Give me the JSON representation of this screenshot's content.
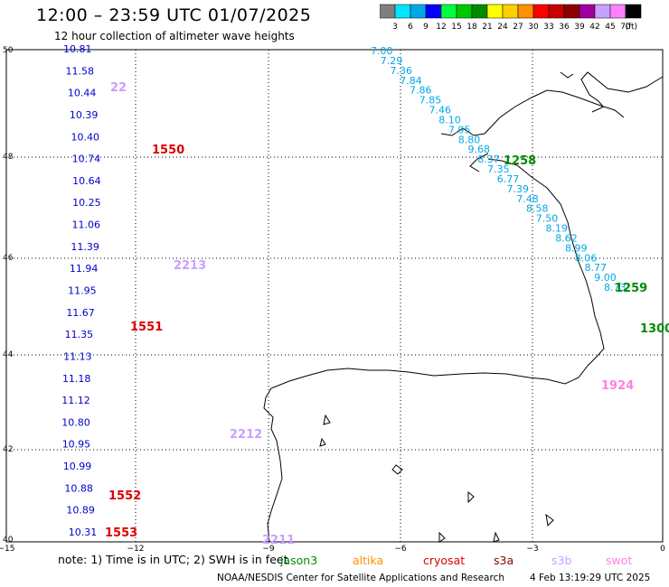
{
  "header": {
    "title": "12:00 – 23:59 UTC 01/07/2025",
    "subtitle": "12 hour collection of altimeter wave heights"
  },
  "legend": {
    "units": "(ft)",
    "bins": [
      {
        "label": "3",
        "color": "#7f7f7f"
      },
      {
        "label": "6",
        "color": "#00e5ff"
      },
      {
        "label": "9",
        "color": "#00a8e8"
      },
      {
        "label": "12",
        "color": "#0000ff"
      },
      {
        "label": "15",
        "color": "#00ff40"
      },
      {
        "label": "18",
        "color": "#00c800"
      },
      {
        "label": "21",
        "color": "#008c00"
      },
      {
        "label": "24",
        "color": "#ffff00"
      },
      {
        "label": "27",
        "color": "#ffd000"
      },
      {
        "label": "30",
        "color": "#ff9000"
      },
      {
        "label": "33",
        "color": "#ff0000"
      },
      {
        "label": "36",
        "color": "#c80000"
      },
      {
        "label": "39",
        "color": "#8c0000"
      },
      {
        "label": "42",
        "color": "#a000a0"
      },
      {
        "label": "45",
        "color": "#c8a0ff"
      },
      {
        "label": "70",
        "color": "#ff80ff"
      },
      {
        "label": "",
        "color": "#000000"
      }
    ]
  },
  "map": {
    "lat_labels": [
      "50",
      "48",
      "46",
      "44",
      "42",
      "40"
    ],
    "lon_labels": [
      "−15",
      "−12",
      "−9",
      "−6",
      "−3",
      "0"
    ],
    "tracks": [
      {
        "color": "#00a8e8",
        "points": [
          {
            "t": "7.00"
          },
          {
            "t": "7.29"
          },
          {
            "t": "7.36"
          },
          {
            "t": "7.84"
          },
          {
            "t": "7.86"
          },
          {
            "t": "7.85"
          },
          {
            "t": "7.46"
          },
          {
            "t": "8.10"
          },
          {
            "t": "7.95"
          },
          {
            "t": "8.80"
          },
          {
            "t": "9.68"
          },
          {
            "t": "8.37"
          },
          {
            "t": "7.35"
          },
          {
            "t": "6.77"
          },
          {
            "t": "7.39"
          },
          {
            "t": "7.48"
          },
          {
            "t": "8.58"
          },
          {
            "t": "7.50"
          },
          {
            "t": "8.19"
          },
          {
            "t": "8.62"
          },
          {
            "t": "8.99"
          },
          {
            "t": "8.06"
          },
          {
            "t": "8.77"
          },
          {
            "t": "9.00"
          },
          {
            "t": "8.73"
          }
        ]
      },
      {
        "color": "#0000cc",
        "points": [
          {
            "t": "10.81"
          },
          {
            "t": "11.58"
          },
          {
            "t": "10.44"
          },
          {
            "t": "10.39"
          },
          {
            "t": "10.40"
          },
          {
            "t": "10.74"
          },
          {
            "t": "10.64"
          },
          {
            "t": "10.25"
          },
          {
            "t": "11.06"
          },
          {
            "t": "11.39"
          },
          {
            "t": "11.94"
          },
          {
            "t": "11.95"
          },
          {
            "t": "11.67"
          },
          {
            "t": "11.35"
          },
          {
            "t": "11.13"
          },
          {
            "t": "11.18"
          },
          {
            "t": "11.12"
          },
          {
            "t": "10.80"
          },
          {
            "t": "10.95"
          },
          {
            "t": "10.99"
          },
          {
            "t": "10.88"
          },
          {
            "t": "10.89"
          },
          {
            "t": "10.31"
          }
        ]
      }
    ],
    "cycle_labels": [
      {
        "text": "1550",
        "color": "#dd0000"
      },
      {
        "text": "1258",
        "color": "#008c00"
      },
      {
        "text": "2213",
        "color": "#c8a0ff"
      },
      {
        "text": "1551",
        "color": "#dd0000"
      },
      {
        "text": "1300",
        "color": "#008c00"
      },
      {
        "text": "1924",
        "color": "#ff80e0"
      },
      {
        "text": "2212",
        "color": "#c8a0ff"
      },
      {
        "text": "1552",
        "color": "#dd0000"
      },
      {
        "text": "1553",
        "color": "#dd0000"
      },
      {
        "text": "2211",
        "color": "#c8a0ff"
      },
      {
        "text": "1259",
        "color": "#008c00"
      },
      {
        "text": "22",
        "color": "#c8a0ff"
      }
    ]
  },
  "footer": {
    "note": "note:  1) Time is in UTC;  2) SWH is in feet",
    "satellites": [
      {
        "name": "jason3",
        "color": "#008c00"
      },
      {
        "name": "altika",
        "color": "#ff9000"
      },
      {
        "name": "cryosat",
        "color": "#dd0000"
      },
      {
        "name": "s3a",
        "color": "#8c0000"
      },
      {
        "name": "s3b",
        "color": "#c8a0ff"
      },
      {
        "name": "swot",
        "color": "#ff80e0"
      }
    ],
    "credit": "NOAA/NESDIS Center for Satellite Applications and Research",
    "generated": "4 Feb 13:19:29 UTC 2025"
  }
}
